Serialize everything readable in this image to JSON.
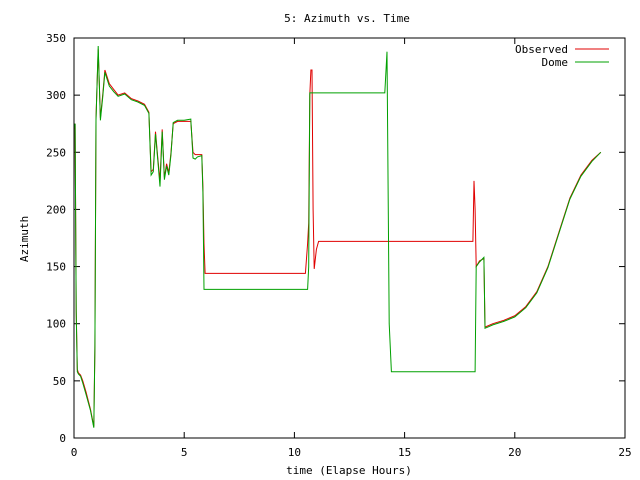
{
  "chart_data": {
    "type": "line",
    "title": "5: Azimuth vs. Time",
    "xlabel": "time (Elapse Hours)",
    "ylabel": "Azimuth",
    "xlim": [
      0,
      25
    ],
    "ylim": [
      0,
      350
    ],
    "xticks": [
      0,
      5,
      10,
      15,
      20,
      25
    ],
    "yticks": [
      0,
      50,
      100,
      150,
      200,
      250,
      300,
      350
    ],
    "grid": false,
    "legend_position": "top-right",
    "series": [
      {
        "name": "Observed",
        "color": "#e00000",
        "points": [
          [
            0.0,
            270
          ],
          [
            0.05,
            275
          ],
          [
            0.1,
            112
          ],
          [
            0.15,
            60
          ],
          [
            0.2,
            57
          ],
          [
            0.3,
            55
          ],
          [
            0.4,
            50
          ],
          [
            0.55,
            40
          ],
          [
            0.75,
            25
          ],
          [
            0.9,
            10
          ],
          [
            0.95,
            80
          ],
          [
            1.0,
            280
          ],
          [
            1.1,
            340
          ],
          [
            1.2,
            280
          ],
          [
            1.3,
            300
          ],
          [
            1.4,
            322
          ],
          [
            1.6,
            310
          ],
          [
            1.8,
            305
          ],
          [
            2.0,
            300
          ],
          [
            2.3,
            302
          ],
          [
            2.6,
            297
          ],
          [
            2.9,
            295
          ],
          [
            3.2,
            292
          ],
          [
            3.4,
            285
          ],
          [
            3.5,
            233
          ],
          [
            3.6,
            235
          ],
          [
            3.7,
            268
          ],
          [
            3.8,
            245
          ],
          [
            3.9,
            225
          ],
          [
            4.0,
            270
          ],
          [
            4.1,
            228
          ],
          [
            4.2,
            240
          ],
          [
            4.3,
            232
          ],
          [
            4.4,
            250
          ],
          [
            4.5,
            275
          ],
          [
            4.7,
            277
          ],
          [
            5.0,
            277
          ],
          [
            5.3,
            277
          ],
          [
            5.4,
            250
          ],
          [
            5.5,
            248
          ],
          [
            5.6,
            248
          ],
          [
            5.8,
            248
          ],
          [
            5.85,
            220
          ],
          [
            5.9,
            170
          ],
          [
            5.95,
            144
          ],
          [
            7.5,
            144
          ],
          [
            9.0,
            144
          ],
          [
            10.5,
            144
          ],
          [
            10.6,
            170
          ],
          [
            10.65,
            188
          ],
          [
            10.7,
            300
          ],
          [
            10.75,
            322
          ],
          [
            10.8,
            322
          ],
          [
            10.85,
            200
          ],
          [
            10.9,
            148
          ],
          [
            11.0,
            165
          ],
          [
            11.1,
            172
          ],
          [
            14.0,
            172
          ],
          [
            18.0,
            172
          ],
          [
            18.1,
            172
          ],
          [
            18.15,
            225
          ],
          [
            18.2,
            200
          ],
          [
            18.25,
            150
          ],
          [
            18.4,
            155
          ],
          [
            18.6,
            157
          ],
          [
            18.65,
            97
          ],
          [
            19.0,
            100
          ],
          [
            19.5,
            103
          ],
          [
            20.0,
            107
          ],
          [
            20.5,
            115
          ],
          [
            21.0,
            128
          ],
          [
            21.5,
            150
          ],
          [
            22.0,
            180
          ],
          [
            22.5,
            210
          ],
          [
            23.0,
            230
          ],
          [
            23.5,
            243
          ],
          [
            23.9,
            250
          ]
        ]
      },
      {
        "name": "Dome",
        "color": "#00a000",
        "points": [
          [
            0.0,
            272
          ],
          [
            0.05,
            275
          ],
          [
            0.1,
            110
          ],
          [
            0.15,
            58
          ],
          [
            0.2,
            56
          ],
          [
            0.3,
            54
          ],
          [
            0.4,
            48
          ],
          [
            0.55,
            38
          ],
          [
            0.75,
            24
          ],
          [
            0.9,
            9
          ],
          [
            0.95,
            78
          ],
          [
            1.0,
            278
          ],
          [
            1.1,
            343
          ],
          [
            1.2,
            278
          ],
          [
            1.3,
            298
          ],
          [
            1.4,
            320
          ],
          [
            1.6,
            308
          ],
          [
            1.8,
            303
          ],
          [
            2.0,
            299
          ],
          [
            2.3,
            301
          ],
          [
            2.6,
            296
          ],
          [
            2.9,
            294
          ],
          [
            3.2,
            291
          ],
          [
            3.4,
            284
          ],
          [
            3.5,
            230
          ],
          [
            3.6,
            233
          ],
          [
            3.7,
            266
          ],
          [
            3.8,
            243
          ],
          [
            3.9,
            220
          ],
          [
            4.0,
            268
          ],
          [
            4.1,
            226
          ],
          [
            4.2,
            238
          ],
          [
            4.3,
            230
          ],
          [
            4.4,
            248
          ],
          [
            4.5,
            276
          ],
          [
            4.7,
            278
          ],
          [
            5.0,
            278
          ],
          [
            5.3,
            279
          ],
          [
            5.4,
            245
          ],
          [
            5.5,
            244
          ],
          [
            5.6,
            246
          ],
          [
            5.8,
            247
          ],
          [
            5.85,
            215
          ],
          [
            5.9,
            130
          ],
          [
            7.5,
            130
          ],
          [
            9.0,
            130
          ],
          [
            10.5,
            130
          ],
          [
            10.6,
            130
          ],
          [
            10.65,
            150
          ],
          [
            10.7,
            302
          ],
          [
            12.0,
            302
          ],
          [
            14.1,
            302
          ],
          [
            14.2,
            338
          ],
          [
            14.3,
            100
          ],
          [
            14.4,
            58
          ],
          [
            16.0,
            58
          ],
          [
            18.2,
            58
          ],
          [
            18.25,
            150
          ],
          [
            18.4,
            154
          ],
          [
            18.6,
            158
          ],
          [
            18.65,
            96
          ],
          [
            19.0,
            99
          ],
          [
            19.5,
            102
          ],
          [
            20.0,
            106
          ],
          [
            20.5,
            114
          ],
          [
            21.0,
            127
          ],
          [
            21.5,
            149
          ],
          [
            22.0,
            179
          ],
          [
            22.5,
            209
          ],
          [
            23.0,
            229
          ],
          [
            23.5,
            242
          ],
          [
            23.9,
            250
          ]
        ]
      }
    ]
  }
}
